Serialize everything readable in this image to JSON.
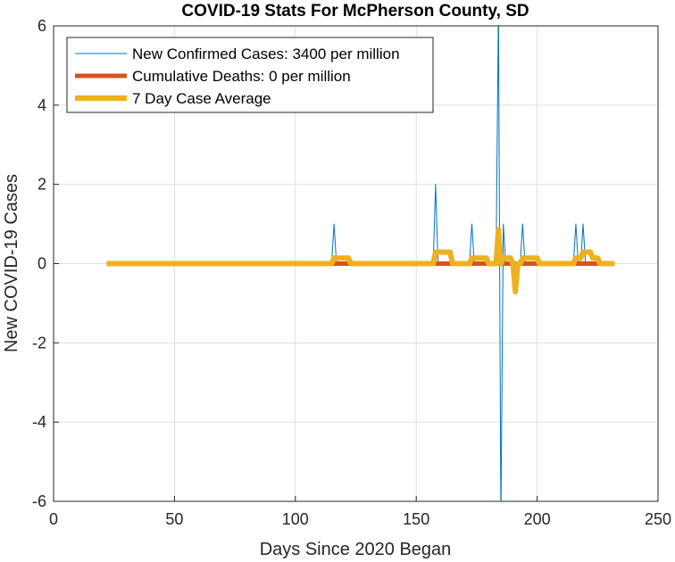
{
  "chart_data": {
    "type": "line",
    "title": "COVID-19 Stats For McPherson County, SD",
    "xlabel": "Days Since 2020 Began",
    "ylabel": "New COVID-19 Cases",
    "xlim": [
      0,
      250
    ],
    "ylim": [
      -6,
      6
    ],
    "xticks": [
      0,
      50,
      100,
      150,
      200,
      250
    ],
    "yticks": [
      -6,
      -4,
      -2,
      0,
      2,
      4,
      6
    ],
    "grid": true,
    "legend_position": "top-left",
    "series": [
      {
        "name": "New Confirmed Cases: 3400 per million",
        "color": "#0072BD",
        "line_style": "thin",
        "x": [
          22,
          115,
          116,
          117,
          157,
          158,
          159,
          172,
          173,
          174,
          183,
          184,
          185,
          186,
          187,
          193,
          194,
          195,
          215,
          216,
          217,
          218,
          219,
          220,
          232
        ],
        "y": [
          0,
          0,
          1,
          0,
          0,
          2,
          0,
          0,
          1,
          0,
          0,
          6.5,
          -6.5,
          1,
          0,
          0,
          1,
          0,
          0,
          1,
          0,
          0,
          1,
          0,
          0
        ]
      },
      {
        "name": "Cumulative Deaths: 0 per million",
        "color": "#D95319",
        "line_style": "thick",
        "x": [
          22,
          232
        ],
        "y": [
          0,
          0
        ]
      },
      {
        "name": "7 Day Case Average",
        "color": "#EDB120",
        "line_style": "thick",
        "x": [
          22,
          115,
          116,
          122,
          123,
          157,
          158,
          164,
          165,
          172,
          173,
          179,
          180,
          183,
          184,
          185,
          186,
          189,
          190,
          191,
          192,
          193,
          194,
          200,
          201,
          215,
          216,
          218,
          219,
          222,
          223,
          225,
          226,
          232
        ],
        "y": [
          0,
          0,
          0.14,
          0.14,
          0,
          0,
          0.29,
          0.29,
          0,
          0,
          0.14,
          0.14,
          0,
          0,
          0.86,
          0,
          0.14,
          0.14,
          0,
          -0.71,
          0,
          0,
          0.14,
          0.14,
          0,
          0,
          0.14,
          0.14,
          0.29,
          0.29,
          0.14,
          0.14,
          0,
          0
        ]
      }
    ]
  }
}
